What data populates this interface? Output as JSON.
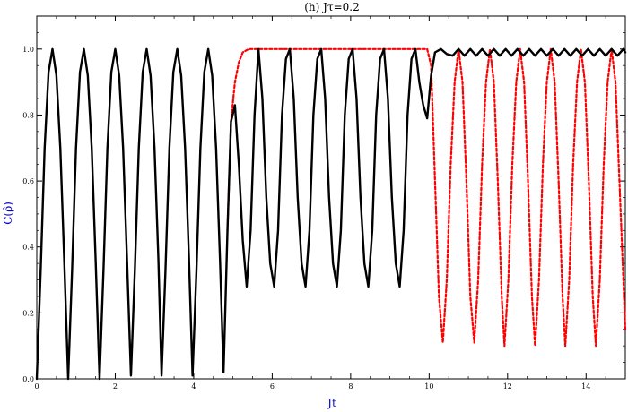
{
  "chart_data": {
    "type": "line",
    "title": "(h) Jτ=0.2",
    "xlabel": "Jt",
    "ylabel": "C(ρ̂)",
    "xlim": [
      0,
      15
    ],
    "ylim": [
      0,
      1.1
    ],
    "xticks": [
      0,
      2,
      4,
      6,
      8,
      10,
      12,
      14
    ],
    "xtick_labels": [
      "0",
      "2",
      "4",
      "6",
      "8",
      "10",
      "12",
      "14"
    ],
    "yticks": [
      0,
      0.2,
      0.4,
      0.6,
      0.8,
      1.0
    ],
    "ytick_labels": [
      "0.0",
      "0.2",
      "0.4",
      "0.6",
      "0.8",
      "1.0"
    ],
    "grid": false,
    "legend": "none",
    "series": [
      {
        "style": "solid",
        "color": "#000000",
        "points": [
          [
            0,
            0
          ],
          [
            0.1,
            0.33
          ],
          [
            0.2,
            0.7
          ],
          [
            0.3,
            0.93
          ],
          [
            0.4,
            1.0
          ],
          [
            0.5,
            0.92
          ],
          [
            0.6,
            0.7
          ],
          [
            0.7,
            0.36
          ],
          [
            0.8,
            0.0
          ],
          [
            0.9,
            0.33
          ],
          [
            1.0,
            0.7
          ],
          [
            1.1,
            0.93
          ],
          [
            1.2,
            1.0
          ],
          [
            1.3,
            0.92
          ],
          [
            1.4,
            0.7
          ],
          [
            1.5,
            0.36
          ],
          [
            1.6,
            0.0
          ],
          [
            1.7,
            0.33
          ],
          [
            1.8,
            0.7
          ],
          [
            1.9,
            0.93
          ],
          [
            2.0,
            1.0
          ],
          [
            2.1,
            0.92
          ],
          [
            2.2,
            0.7
          ],
          [
            2.3,
            0.36
          ],
          [
            2.4,
            0.01
          ],
          [
            2.5,
            0.33
          ],
          [
            2.6,
            0.7
          ],
          [
            2.7,
            0.93
          ],
          [
            2.8,
            1.0
          ],
          [
            2.9,
            0.92
          ],
          [
            3.0,
            0.7
          ],
          [
            3.1,
            0.36
          ],
          [
            3.18,
            0.01
          ],
          [
            3.28,
            0.33
          ],
          [
            3.38,
            0.7
          ],
          [
            3.48,
            0.93
          ],
          [
            3.58,
            1.0
          ],
          [
            3.68,
            0.92
          ],
          [
            3.78,
            0.7
          ],
          [
            3.88,
            0.36
          ],
          [
            3.97,
            0.01
          ],
          [
            4.07,
            0.33
          ],
          [
            4.17,
            0.7
          ],
          [
            4.27,
            0.93
          ],
          [
            4.37,
            1.0
          ],
          [
            4.47,
            0.92
          ],
          [
            4.57,
            0.7
          ],
          [
            4.67,
            0.36
          ],
          [
            4.76,
            0.02
          ],
          [
            4.86,
            0.45
          ],
          [
            4.95,
            0.78
          ],
          [
            5.05,
            0.83
          ],
          [
            5.15,
            0.65
          ],
          [
            5.25,
            0.42
          ],
          [
            5.35,
            0.28
          ],
          [
            5.45,
            0.45
          ],
          [
            5.55,
            0.8
          ],
          [
            5.65,
            1.0
          ],
          [
            5.75,
            0.85
          ],
          [
            5.85,
            0.55
          ],
          [
            5.95,
            0.35
          ],
          [
            6.05,
            0.28
          ],
          [
            6.15,
            0.45
          ],
          [
            6.25,
            0.8
          ],
          [
            6.35,
            0.97
          ],
          [
            6.45,
            1.0
          ],
          [
            6.55,
            0.85
          ],
          [
            6.65,
            0.55
          ],
          [
            6.75,
            0.35
          ],
          [
            6.85,
            0.28
          ],
          [
            6.95,
            0.45
          ],
          [
            7.05,
            0.8
          ],
          [
            7.15,
            0.97
          ],
          [
            7.25,
            1.0
          ],
          [
            7.35,
            0.85
          ],
          [
            7.45,
            0.55
          ],
          [
            7.55,
            0.35
          ],
          [
            7.65,
            0.28
          ],
          [
            7.75,
            0.45
          ],
          [
            7.85,
            0.8
          ],
          [
            7.95,
            0.97
          ],
          [
            8.05,
            1.0
          ],
          [
            8.15,
            0.85
          ],
          [
            8.25,
            0.55
          ],
          [
            8.35,
            0.35
          ],
          [
            8.45,
            0.28
          ],
          [
            8.55,
            0.45
          ],
          [
            8.65,
            0.8
          ],
          [
            8.75,
            0.97
          ],
          [
            8.85,
            1.0
          ],
          [
            8.95,
            0.85
          ],
          [
            9.05,
            0.55
          ],
          [
            9.15,
            0.35
          ],
          [
            9.25,
            0.28
          ],
          [
            9.35,
            0.45
          ],
          [
            9.45,
            0.8
          ],
          [
            9.55,
            0.97
          ],
          [
            9.65,
            1.0
          ],
          [
            9.75,
            0.9
          ],
          [
            9.85,
            0.83
          ],
          [
            9.95,
            0.79
          ],
          [
            10.05,
            0.92
          ],
          [
            10.15,
            0.99
          ],
          [
            10.3,
            1.0
          ],
          [
            10.45,
            0.985
          ],
          [
            10.6,
            0.98
          ],
          [
            10.75,
            1.0
          ],
          [
            10.9,
            0.98
          ],
          [
            11.05,
            1.0
          ],
          [
            11.2,
            0.98
          ],
          [
            11.35,
            1.0
          ],
          [
            11.5,
            0.98
          ],
          [
            11.65,
            1.0
          ],
          [
            11.8,
            0.98
          ],
          [
            11.95,
            1.0
          ],
          [
            12.1,
            0.98
          ],
          [
            12.25,
            1.0
          ],
          [
            12.4,
            0.98
          ],
          [
            12.55,
            1.0
          ],
          [
            12.7,
            0.98
          ],
          [
            12.85,
            1.0
          ],
          [
            13.0,
            0.98
          ],
          [
            13.15,
            1.0
          ],
          [
            13.3,
            0.98
          ],
          [
            13.45,
            1.0
          ],
          [
            13.6,
            0.98
          ],
          [
            13.75,
            1.0
          ],
          [
            13.9,
            0.98
          ],
          [
            14.05,
            1.0
          ],
          [
            14.2,
            0.98
          ],
          [
            14.35,
            1.0
          ],
          [
            14.5,
            0.98
          ],
          [
            14.65,
            1.0
          ],
          [
            14.8,
            0.98
          ],
          [
            14.95,
            1.0
          ],
          [
            15.0,
            0.99
          ]
        ]
      },
      {
        "style": "dashed",
        "color": "#ff0000",
        "points": [
          [
            4.86,
            0.45
          ],
          [
            4.95,
            0.78
          ],
          [
            5.05,
            0.9
          ],
          [
            5.15,
            0.96
          ],
          [
            5.25,
            0.99
          ],
          [
            5.4,
            1.0
          ],
          [
            6.0,
            1.0
          ],
          [
            7.0,
            1.0
          ],
          [
            8.0,
            1.0
          ],
          [
            9.0,
            1.0
          ],
          [
            9.8,
            1.0
          ],
          [
            9.95,
            1.0
          ],
          [
            10.05,
            0.95
          ],
          [
            10.15,
            0.6
          ],
          [
            10.25,
            0.25
          ],
          [
            10.35,
            0.11
          ],
          [
            10.45,
            0.3
          ],
          [
            10.55,
            0.65
          ],
          [
            10.65,
            0.9
          ],
          [
            10.75,
            1.0
          ],
          [
            10.85,
            0.9
          ],
          [
            10.95,
            0.6
          ],
          [
            11.05,
            0.25
          ],
          [
            11.15,
            0.11
          ],
          [
            11.25,
            0.3
          ],
          [
            11.35,
            0.65
          ],
          [
            11.45,
            0.9
          ],
          [
            11.55,
            1.0
          ],
          [
            11.65,
            0.9
          ],
          [
            11.75,
            0.6
          ],
          [
            11.85,
            0.25
          ],
          [
            11.92,
            0.1
          ],
          [
            12.02,
            0.3
          ],
          [
            12.12,
            0.65
          ],
          [
            12.22,
            0.9
          ],
          [
            12.32,
            1.0
          ],
          [
            12.42,
            0.9
          ],
          [
            12.52,
            0.6
          ],
          [
            12.62,
            0.25
          ],
          [
            12.7,
            0.1
          ],
          [
            12.8,
            0.3
          ],
          [
            12.9,
            0.65
          ],
          [
            13.0,
            0.9
          ],
          [
            13.1,
            1.0
          ],
          [
            13.2,
            0.9
          ],
          [
            13.3,
            0.6
          ],
          [
            13.4,
            0.25
          ],
          [
            13.47,
            0.1
          ],
          [
            13.57,
            0.3
          ],
          [
            13.67,
            0.65
          ],
          [
            13.77,
            0.9
          ],
          [
            13.87,
            1.0
          ],
          [
            13.97,
            0.9
          ],
          [
            14.07,
            0.6
          ],
          [
            14.17,
            0.25
          ],
          [
            14.25,
            0.1
          ],
          [
            14.35,
            0.3
          ],
          [
            14.45,
            0.65
          ],
          [
            14.55,
            0.9
          ],
          [
            14.65,
            1.0
          ],
          [
            14.75,
            0.9
          ],
          [
            14.85,
            0.6
          ],
          [
            14.95,
            0.3
          ],
          [
            15.0,
            0.15
          ]
        ]
      }
    ]
  }
}
